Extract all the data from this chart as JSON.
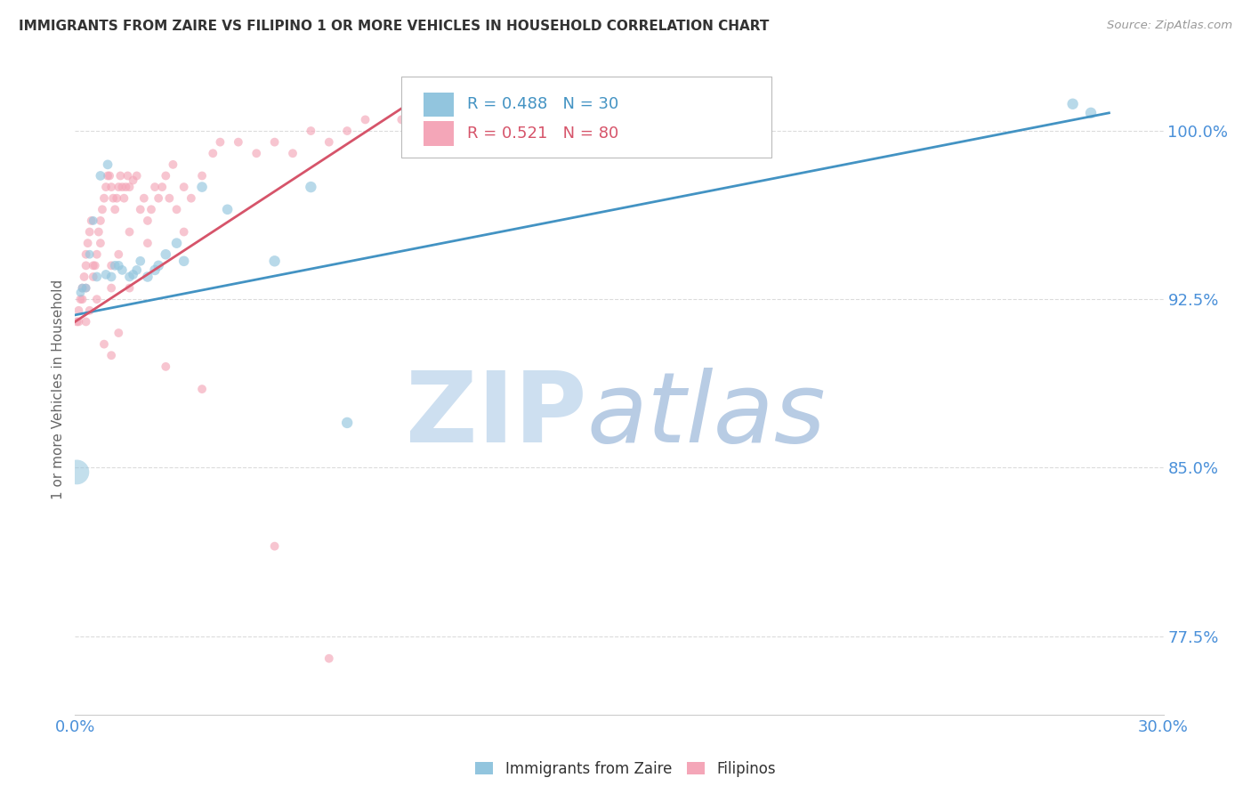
{
  "title": "IMMIGRANTS FROM ZAIRE VS FILIPINO 1 OR MORE VEHICLES IN HOUSEHOLD CORRELATION CHART",
  "source_text": "Source: ZipAtlas.com",
  "ylabel": "1 or more Vehicles in Household",
  "xlim": [
    0.0,
    30.0
  ],
  "ylim": [
    74.0,
    103.0
  ],
  "yticks": [
    77.5,
    85.0,
    92.5,
    100.0
  ],
  "xticks": [
    0.0,
    3.0,
    6.0,
    9.0,
    12.0,
    15.0,
    18.0,
    21.0,
    24.0,
    27.0,
    30.0
  ],
  "legend_blue_r": "R = 0.488",
  "legend_blue_n": "N = 30",
  "legend_pink_r": "R = 0.521",
  "legend_pink_n": "N = 80",
  "legend_label_blue": "Immigrants from Zaire",
  "legend_label_pink": "Filipinos",
  "blue_color": "#92c5de",
  "pink_color": "#f4a6b8",
  "blue_line_color": "#4393c3",
  "pink_line_color": "#d6546a",
  "watermark_zip_color": "#cddff0",
  "watermark_atlas_color": "#b8cce4",
  "background_color": "#ffffff",
  "grid_color": "#cccccc",
  "title_color": "#333333",
  "axis_label_color": "#666666",
  "tick_label_color": "#4a90d9",
  "source_color": "#999999",
  "blue_scatter_x": [
    0.2,
    0.4,
    0.5,
    0.7,
    0.9,
    1.0,
    1.1,
    1.3,
    1.5,
    1.7,
    1.8,
    2.0,
    2.2,
    2.5,
    2.8,
    3.0,
    3.5,
    4.2,
    5.5,
    6.5,
    7.5,
    0.15,
    0.3,
    0.6,
    0.85,
    1.2,
    1.6,
    2.3,
    27.5,
    28.0
  ],
  "blue_scatter_y": [
    93.0,
    94.5,
    96.0,
    98.0,
    98.5,
    93.5,
    94.0,
    93.8,
    93.5,
    93.8,
    94.2,
    93.5,
    93.8,
    94.5,
    95.0,
    94.2,
    97.5,
    96.5,
    94.2,
    97.5,
    87.0,
    92.8,
    93.0,
    93.5,
    93.6,
    94.0,
    93.6,
    94.0,
    101.2,
    100.8
  ],
  "blue_scatter_sizes": [
    50,
    50,
    50,
    60,
    60,
    60,
    60,
    60,
    60,
    60,
    60,
    70,
    70,
    70,
    70,
    70,
    70,
    70,
    80,
    80,
    80,
    50,
    50,
    60,
    60,
    60,
    60,
    70,
    80,
    80
  ],
  "blue_big_dot_x": 0.05,
  "blue_big_dot_y": 84.8,
  "blue_big_dot_size": 400,
  "pink_scatter_x": [
    0.1,
    0.15,
    0.2,
    0.25,
    0.3,
    0.35,
    0.4,
    0.45,
    0.5,
    0.55,
    0.6,
    0.65,
    0.7,
    0.75,
    0.8,
    0.85,
    0.9,
    0.95,
    1.0,
    1.05,
    1.1,
    1.15,
    1.2,
    1.25,
    1.3,
    1.35,
    1.4,
    1.45,
    1.5,
    1.6,
    1.7,
    1.8,
    1.9,
    2.0,
    2.1,
    2.2,
    2.3,
    2.4,
    2.5,
    2.6,
    2.7,
    2.8,
    3.0,
    3.2,
    3.5,
    3.8,
    4.0,
    4.5,
    5.0,
    5.5,
    6.0,
    6.5,
    7.0,
    7.5,
    8.0,
    9.0,
    0.3,
    0.5,
    0.7,
    1.0,
    1.2,
    1.5,
    2.0,
    3.0,
    0.1,
    0.2,
    0.3,
    1.0,
    1.5,
    0.05,
    1.2,
    0.8,
    1.0,
    0.6,
    0.4,
    0.3,
    2.5,
    3.5,
    5.5,
    7.0
  ],
  "pink_scatter_y": [
    91.5,
    92.5,
    93.0,
    93.5,
    94.0,
    95.0,
    95.5,
    96.0,
    93.5,
    94.0,
    94.5,
    95.5,
    96.0,
    96.5,
    97.0,
    97.5,
    98.0,
    98.0,
    97.5,
    97.0,
    96.5,
    97.0,
    97.5,
    98.0,
    97.5,
    97.0,
    97.5,
    98.0,
    97.5,
    97.8,
    98.0,
    96.5,
    97.0,
    96.0,
    96.5,
    97.5,
    97.0,
    97.5,
    98.0,
    97.0,
    98.5,
    96.5,
    97.5,
    97.0,
    98.0,
    99.0,
    99.5,
    99.5,
    99.0,
    99.5,
    99.0,
    100.0,
    99.5,
    100.0,
    100.5,
    100.5,
    94.5,
    94.0,
    95.0,
    94.0,
    94.5,
    95.5,
    95.0,
    95.5,
    92.0,
    92.5,
    91.5,
    93.0,
    93.0,
    91.5,
    91.0,
    90.5,
    90.0,
    92.5,
    92.0,
    93.0,
    89.5,
    88.5,
    81.5,
    76.5
  ],
  "pink_scatter_sizes": [
    50,
    50,
    50,
    50,
    50,
    50,
    50,
    50,
    50,
    50,
    50,
    50,
    50,
    50,
    50,
    50,
    50,
    50,
    50,
    50,
    50,
    50,
    50,
    50,
    50,
    50,
    50,
    50,
    50,
    50,
    50,
    50,
    50,
    50,
    50,
    50,
    50,
    50,
    50,
    50,
    50,
    50,
    50,
    50,
    50,
    50,
    50,
    50,
    50,
    50,
    50,
    50,
    50,
    50,
    50,
    50,
    50,
    50,
    50,
    50,
    50,
    50,
    50,
    50,
    50,
    50,
    50,
    50,
    50,
    50,
    50,
    50,
    50,
    50,
    50,
    50,
    50,
    50,
    50,
    50
  ],
  "blue_trendline_x": [
    0.0,
    28.5
  ],
  "blue_trendline_y": [
    91.8,
    100.8
  ],
  "pink_trendline_x": [
    0.0,
    9.0
  ],
  "pink_trendline_y": [
    91.5,
    101.0
  ]
}
